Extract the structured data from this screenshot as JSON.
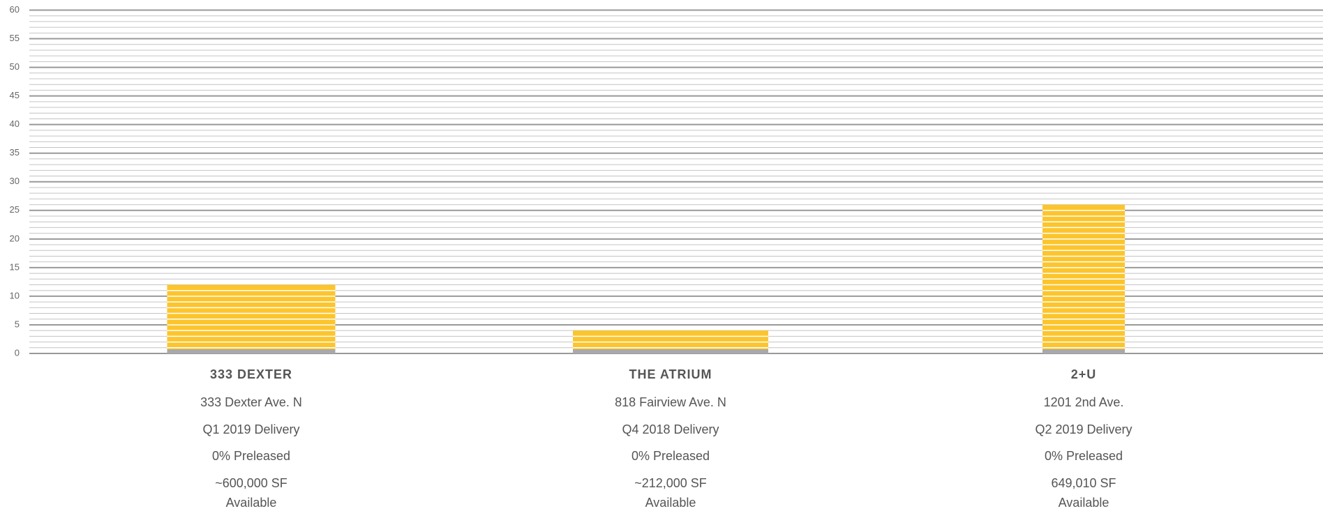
{
  "chart_data": {
    "type": "bar",
    "categories": [
      "333 DEXTER",
      "THE ATRIUM",
      "2+U"
    ],
    "values": [
      12,
      4,
      26
    ],
    "color": "#fcc52d",
    "ylim": [
      0,
      60
    ],
    "yticks": [
      0,
      5,
      10,
      15,
      20,
      25,
      30,
      35,
      40,
      45,
      50,
      55,
      60
    ],
    "grid": true,
    "details": [
      {
        "address": "333 Dexter Ave. N",
        "delivery": "Q1 2019 Delivery",
        "preleased": "0% Preleased",
        "size": "~600,000 SF",
        "availability": "Available"
      },
      {
        "address": "818 Fairview Ave. N",
        "delivery": "Q4 2018 Delivery",
        "preleased": "0% Preleased",
        "size": "~212,000 SF",
        "availability": "Available"
      },
      {
        "address": "1201 2nd Ave.",
        "delivery": "Q2 2019 Delivery",
        "preleased": "0% Preleased",
        "size": "649,010 SF",
        "availability": "Available"
      }
    ]
  }
}
